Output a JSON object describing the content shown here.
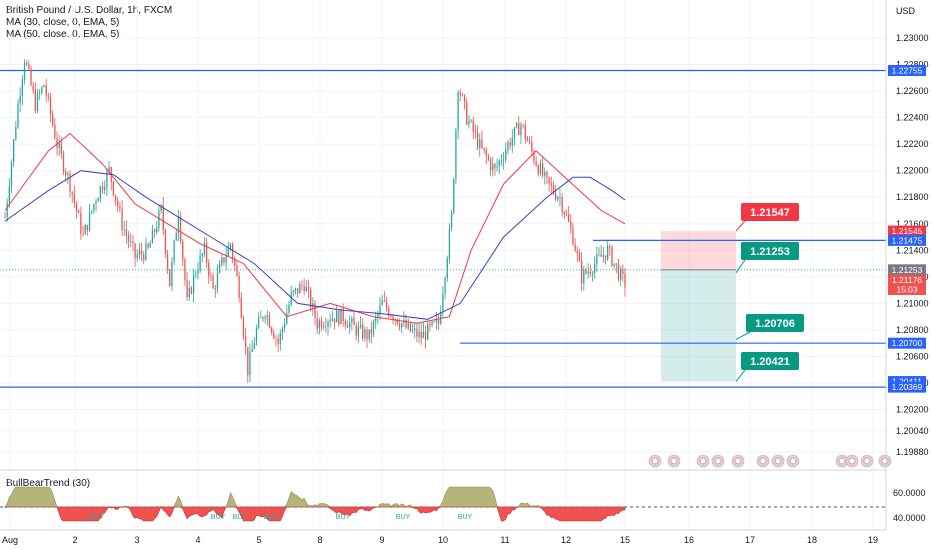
{
  "header": {
    "title": "British Pound / U.S. Dollar, 1h, FXCM",
    "ma1": "MA (30, close, 0, EMA, 5)",
    "ma2": "MA (50, close, 0, EMA, 5)",
    "currency": "USD"
  },
  "indicator": {
    "label": "BullBearTrend (30)",
    "ticks": [
      "60.0000",
      "40.0000"
    ],
    "buy_label": "BUY"
  },
  "colors": {
    "up": "#26a69a",
    "down": "#ef5350",
    "ma30": "#f23645",
    "ma50": "#3f3fbf",
    "level": "#2962ff",
    "tp_zone": "#26a69a",
    "sl_zone": "#f7525f",
    "bull_fill": "#b5b57a",
    "bear_fill": "#ef5350"
  },
  "chart_data": {
    "type": "candlestick",
    "title": "British Pound / U.S. Dollar, 1h, FXCM",
    "y_range": [
      1.1985,
      1.231
    ],
    "y_ticks": [
      "1.23000",
      "1.22800",
      "1.22600",
      "1.22400",
      "1.22200",
      "1.22000",
      "1.21800",
      "1.21600",
      "1.21400",
      "1.21200",
      "1.21000",
      "1.20800",
      "1.20600",
      "1.20400",
      "1.20200",
      "1.20040",
      "1.19880"
    ],
    "x_ticks": [
      "Aug",
      "2",
      "3",
      "4",
      "5",
      "8",
      "9",
      "10",
      "11",
      "12",
      "15",
      "16",
      "17",
      "18",
      "19"
    ],
    "horizontal_levels": [
      1.22755,
      1.21475,
      1.207,
      1.20369
    ],
    "price_tags": [
      {
        "label": "1.22755",
        "value": 1.22755,
        "color": "#2962ff"
      },
      {
        "label": "1.21545",
        "value": 1.21545,
        "color": "#f23645"
      },
      {
        "label": "1.21475",
        "value": 1.21475,
        "color": "#2962ff"
      },
      {
        "label": "1.21253",
        "value": 1.21253,
        "color": "#787b86"
      },
      {
        "label": "1.21176",
        "value": 1.21176,
        "color": "#ef5350"
      },
      {
        "label": "15:03",
        "value": 1.21105,
        "color": "#ef5350"
      },
      {
        "label": "1.20700",
        "value": 1.207,
        "color": "#2962ff"
      },
      {
        "label": "1.20411",
        "value": 1.20411,
        "color": "#2962ff"
      },
      {
        "label": "1.20369",
        "value": 1.20369,
        "color": "#2962ff"
      }
    ],
    "position": {
      "entry": 1.21253,
      "stop": 1.21545,
      "target": 1.20411,
      "start_x_label": "15",
      "end_x_label": "16"
    },
    "annotations": [
      {
        "label": "1.21547",
        "value": 1.21547,
        "color": "#f23645"
      },
      {
        "label": "1.21253",
        "value": 1.21253,
        "color": "#089981"
      },
      {
        "label": "1.20706",
        "value": 1.20706,
        "color": "#089981"
      },
      {
        "label": "1.20421",
        "value": 1.20421,
        "color": "#089981"
      }
    ],
    "anchor_closes": [
      [
        0,
        1.2165
      ],
      [
        6,
        1.225
      ],
      [
        9,
        1.2285
      ],
      [
        14,
        1.225
      ],
      [
        18,
        1.2265
      ],
      [
        24,
        1.222
      ],
      [
        30,
        1.219
      ],
      [
        36,
        1.215
      ],
      [
        42,
        1.218
      ],
      [
        48,
        1.22
      ],
      [
        54,
        1.216
      ],
      [
        60,
        1.2135
      ],
      [
        66,
        1.214
      ],
      [
        72,
        1.217
      ],
      [
        76,
        1.2115
      ],
      [
        80,
        1.217
      ],
      [
        84,
        1.21
      ],
      [
        88,
        1.2125
      ],
      [
        92,
        1.214
      ],
      [
        96,
        1.211
      ],
      [
        100,
        1.213
      ],
      [
        104,
        1.2145
      ],
      [
        108,
        1.211
      ],
      [
        112,
        1.205
      ],
      [
        116,
        1.208
      ],
      [
        120,
        1.2095
      ],
      [
        126,
        1.207
      ],
      [
        132,
        1.2105
      ],
      [
        138,
        1.2115
      ],
      [
        144,
        1.2085
      ],
      [
        150,
        1.209
      ],
      [
        156,
        1.209
      ],
      [
        162,
        1.208
      ],
      [
        168,
        1.2075
      ],
      [
        174,
        1.21
      ],
      [
        180,
        1.209
      ],
      [
        186,
        1.208
      ],
      [
        192,
        1.2075
      ],
      [
        200,
        1.2085
      ],
      [
        206,
        1.2165
      ],
      [
        209,
        1.2265
      ],
      [
        213,
        1.224
      ],
      [
        220,
        1.2215
      ],
      [
        226,
        1.22
      ],
      [
        232,
        1.222
      ],
      [
        238,
        1.2235
      ],
      [
        244,
        1.221
      ],
      [
        250,
        1.219
      ],
      [
        256,
        1.218
      ],
      [
        262,
        1.215
      ],
      [
        266,
        1.212
      ],
      [
        272,
        1.213
      ],
      [
        278,
        1.214
      ],
      [
        284,
        1.212
      ],
      [
        286,
        1.2115
      ]
    ],
    "ma30_path": [
      [
        0,
        1.217
      ],
      [
        20,
        1.2215
      ],
      [
        30,
        1.2228
      ],
      [
        45,
        1.2205
      ],
      [
        60,
        1.2175
      ],
      [
        75,
        1.216
      ],
      [
        90,
        1.2145
      ],
      [
        110,
        1.213
      ],
      [
        130,
        1.209
      ],
      [
        150,
        1.21
      ],
      [
        170,
        1.209
      ],
      [
        190,
        1.2085
      ],
      [
        205,
        1.209
      ],
      [
        215,
        1.214
      ],
      [
        230,
        1.219
      ],
      [
        245,
        1.2215
      ],
      [
        255,
        1.22
      ],
      [
        265,
        1.2185
      ],
      [
        275,
        1.217
      ],
      [
        286,
        1.216
      ]
    ],
    "ma50_path": [
      [
        0,
        1.2162
      ],
      [
        20,
        1.2185
      ],
      [
        35,
        1.22
      ],
      [
        50,
        1.2197
      ],
      [
        65,
        1.218
      ],
      [
        80,
        1.2165
      ],
      [
        95,
        1.215
      ],
      [
        115,
        1.213
      ],
      [
        135,
        1.21
      ],
      [
        155,
        1.2095
      ],
      [
        175,
        1.2092
      ],
      [
        195,
        1.2088
      ],
      [
        210,
        1.21
      ],
      [
        230,
        1.215
      ],
      [
        250,
        1.218
      ],
      [
        262,
        1.2195
      ],
      [
        270,
        1.2195
      ],
      [
        280,
        1.2185
      ],
      [
        286,
        1.2178
      ]
    ]
  }
}
